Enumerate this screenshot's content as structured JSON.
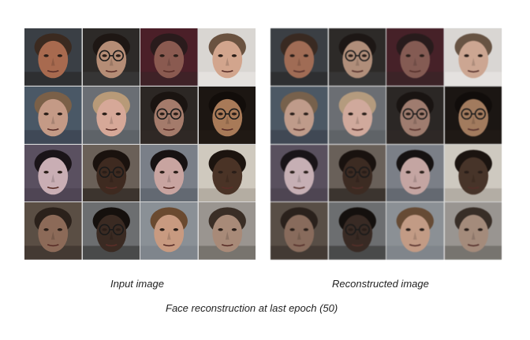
{
  "captions": {
    "input": "Input image",
    "reconstructed": "Reconstructed image",
    "figure": "Face reconstruction at last epoch (50)"
  },
  "tiles": [
    {
      "bg": "#3a3f45",
      "skin": "#a86a4f",
      "hair": "#3b2a20",
      "glasses": false,
      "dark": "#2a2a2a"
    },
    {
      "bg": "#2d2a28",
      "skin": "#b58d76",
      "hair": "#1e1714",
      "glasses": true,
      "dark": "#3a3a3a"
    },
    {
      "bg": "#4b1f28",
      "skin": "#8a5a50",
      "hair": "#2a1b1c",
      "glasses": false,
      "dark": "#3a2426"
    },
    {
      "bg": "#d9d6d2",
      "skin": "#d2a58d",
      "hair": "#6a5240",
      "glasses": false,
      "dark": "#e8e6e3"
    },
    {
      "bg": "#4a5866",
      "skin": "#c49a86",
      "hair": "#7a6048",
      "glasses": false,
      "dark": "#3a4250"
    },
    {
      "bg": "#6a6e74",
      "skin": "#d6a898",
      "hair": "#b89a78",
      "glasses": false,
      "dark": "#5a5e64"
    },
    {
      "bg": "#2c2724",
      "skin": "#a47b6b",
      "hair": "#1a1411",
      "glasses": true,
      "dark": "#302a26"
    },
    {
      "bg": "#1c1612",
      "skin": "#a87a58",
      "hair": "#120d0a",
      "glasses": true,
      "dark": "#221b16"
    },
    {
      "bg": "#5a5060",
      "skin": "#c9aeb4",
      "hair": "#1a1418",
      "glasses": false,
      "dark": "#4a4050"
    },
    {
      "bg": "#6a6058",
      "skin": "#3e2a20",
      "hair": "#1a120e",
      "glasses": true,
      "dark": "#2a221c"
    },
    {
      "bg": "#7a7f88",
      "skin": "#c8a4a0",
      "hair": "#171212",
      "glasses": false,
      "dark": "#5a606a"
    },
    {
      "bg": "#cfc9be",
      "skin": "#4a3326",
      "hair": "#1c140f",
      "glasses": false,
      "dark": "#a8a196"
    },
    {
      "bg": "#5a4e44",
      "skin": "#8c6a58",
      "hair": "#2b211b",
      "glasses": false,
      "dark": "#3a322c"
    },
    {
      "bg": "#6c6e70",
      "skin": "#3a2a22",
      "hair": "#15100d",
      "glasses": true,
      "dark": "#3a3a3a"
    },
    {
      "bg": "#8a9096",
      "skin": "#c89a80",
      "hair": "#6a4a30",
      "glasses": false,
      "dark": "#7a8088"
    },
    {
      "bg": "#9a9590",
      "skin": "#a88a78",
      "hair": "#3a2e26",
      "glasses": false,
      "dark": "#6a665f"
    }
  ]
}
